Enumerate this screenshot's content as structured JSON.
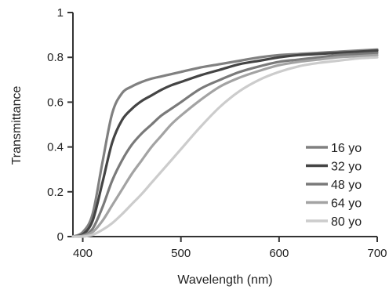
{
  "chart_data": {
    "type": "line",
    "xlabel": "Wavelength (nm)",
    "ylabel": "Transmittance",
    "xlim": [
      390,
      700
    ],
    "ylim": [
      0,
      1
    ],
    "x_ticks": [
      400,
      500,
      600,
      700
    ],
    "y_ticks": [
      0,
      0.2,
      0.4,
      0.6,
      0.8,
      1
    ],
    "y_tick_labels": [
      "0",
      "0.2",
      "0.4",
      "0.6",
      "0.8",
      "1"
    ],
    "grid": false,
    "legend_position": "bottom-right",
    "x": [
      390,
      400,
      410,
      420,
      430,
      440,
      450,
      460,
      470,
      480,
      490,
      500,
      520,
      540,
      560,
      580,
      600,
      620,
      640,
      660,
      680,
      700
    ],
    "series": [
      {
        "name": "16 yo",
        "color": "#808080",
        "values": [
          0.0,
          0.02,
          0.1,
          0.33,
          0.55,
          0.64,
          0.67,
          0.69,
          0.705,
          0.715,
          0.725,
          0.735,
          0.755,
          0.77,
          0.785,
          0.8,
          0.81,
          0.815,
          0.82,
          0.825,
          0.83,
          0.835
        ]
      },
      {
        "name": "32 yo",
        "color": "#444444",
        "values": [
          0.0,
          0.01,
          0.07,
          0.24,
          0.42,
          0.52,
          0.57,
          0.605,
          0.63,
          0.655,
          0.675,
          0.69,
          0.72,
          0.745,
          0.77,
          0.785,
          0.8,
          0.81,
          0.815,
          0.82,
          0.825,
          0.83
        ]
      },
      {
        "name": "48 yo",
        "color": "#7a7a7a",
        "values": [
          0.0,
          0.005,
          0.035,
          0.13,
          0.25,
          0.34,
          0.41,
          0.46,
          0.5,
          0.54,
          0.57,
          0.6,
          0.66,
          0.7,
          0.735,
          0.76,
          0.78,
          0.79,
          0.8,
          0.81,
          0.815,
          0.82
        ]
      },
      {
        "name": "64 yo",
        "color": "#a3a3a3",
        "values": [
          0.0,
          0.003,
          0.02,
          0.07,
          0.14,
          0.21,
          0.28,
          0.34,
          0.4,
          0.45,
          0.5,
          0.54,
          0.61,
          0.67,
          0.71,
          0.74,
          0.765,
          0.78,
          0.79,
          0.8,
          0.805,
          0.81
        ]
      },
      {
        "name": "80 yo",
        "color": "#cccccc",
        "values": [
          0.0,
          0.0,
          0.008,
          0.03,
          0.06,
          0.1,
          0.145,
          0.19,
          0.24,
          0.29,
          0.34,
          0.39,
          0.49,
          0.58,
          0.65,
          0.7,
          0.735,
          0.76,
          0.775,
          0.785,
          0.795,
          0.8
        ]
      }
    ]
  }
}
